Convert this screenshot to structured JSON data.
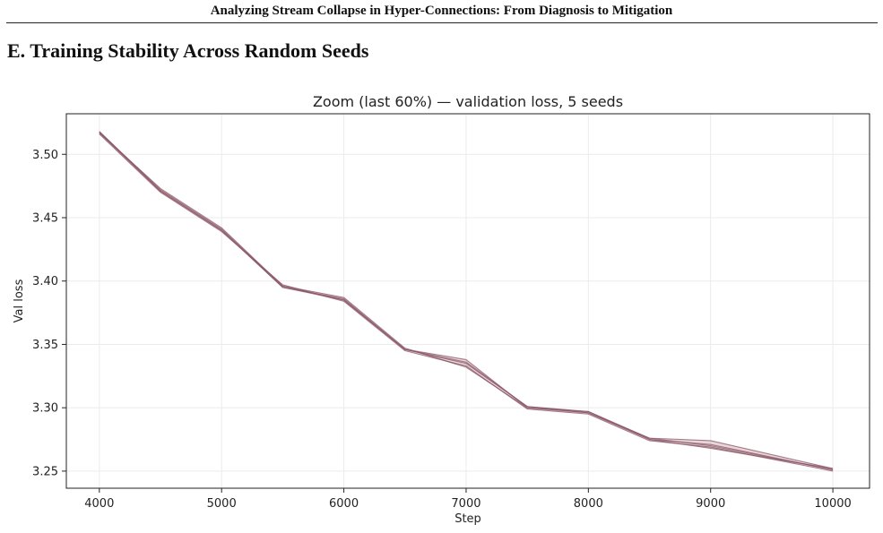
{
  "header": {
    "running_title": "Analyzing Stream Collapse in Hyper-Connections: From Diagnosis to Mitigation"
  },
  "section": {
    "heading": "E. Training Stability Across Random Seeds"
  },
  "chart_data": {
    "type": "line",
    "title": "Zoom (last 60%) — validation loss, 5 seeds",
    "xlabel": "Step",
    "ylabel": "Val loss",
    "xlim": [
      3730,
      10300
    ],
    "ylim": [
      3.2365,
      3.532
    ],
    "x_ticks": [
      4000,
      5000,
      6000,
      7000,
      8000,
      9000,
      10000
    ],
    "y_ticks": [
      3.25,
      3.3,
      3.35,
      3.4,
      3.45,
      3.5
    ],
    "x_tick_labels": [
      "4000",
      "5000",
      "6000",
      "7000",
      "8000",
      "9000",
      "10000"
    ],
    "y_tick_labels": [
      "3.25",
      "3.30",
      "3.35",
      "3.40",
      "3.45",
      "3.50"
    ],
    "grid": true,
    "x": [
      4000,
      4500,
      5000,
      5500,
      6000,
      6500,
      7000,
      7500,
      8000,
      8500,
      9000,
      10000
    ],
    "series": [
      {
        "values": [
          3.518,
          3.472,
          3.441,
          3.396,
          3.385,
          3.346,
          3.338,
          3.3,
          3.297,
          3.276,
          3.274,
          3.252
        ]
      },
      {
        "values": [
          3.517,
          3.471,
          3.44,
          3.395,
          3.386,
          3.346,
          3.335,
          3.301,
          3.296,
          3.275,
          3.271,
          3.251
        ]
      },
      {
        "values": [
          3.516,
          3.47,
          3.439,
          3.397,
          3.384,
          3.345,
          3.333,
          3.299,
          3.295,
          3.274,
          3.269,
          3.25
        ]
      },
      {
        "values": [
          3.517,
          3.473,
          3.442,
          3.396,
          3.387,
          3.347,
          3.332,
          3.3,
          3.296,
          3.276,
          3.27,
          3.251
        ]
      },
      {
        "values": [
          3.518,
          3.471,
          3.44,
          3.395,
          3.385,
          3.346,
          3.336,
          3.301,
          3.297,
          3.275,
          3.268,
          3.252
        ]
      }
    ],
    "colors": {
      "line": "#8a5566",
      "band": "#c9a3ae",
      "grid": "#ebebeb",
      "axis": "#222222"
    }
  }
}
